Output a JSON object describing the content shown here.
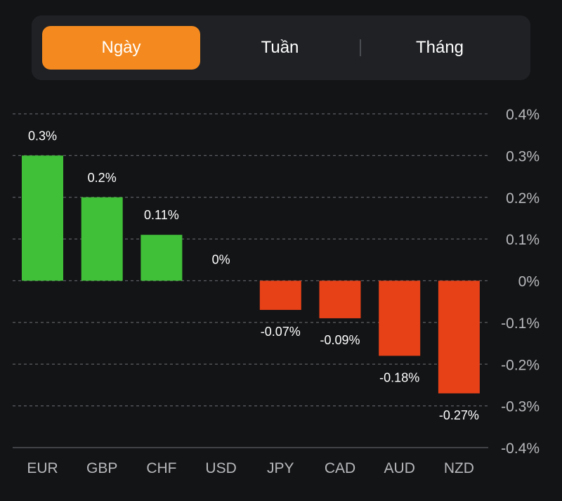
{
  "tabs": [
    {
      "label": "Ngày",
      "active": true
    },
    {
      "label": "Tuần",
      "active": false
    },
    {
      "label": "Tháng",
      "active": false
    }
  ],
  "colors": {
    "background": "#131416",
    "tab_bar": "#1f2125",
    "active_tab": "#f48a1f",
    "positive": "#40bf38",
    "negative": "#e74118",
    "text": "#ffffff",
    "axis_text": "#b8b9bc",
    "gridline": "#5c5e63"
  },
  "chart_data": {
    "type": "bar",
    "categories": [
      "EUR",
      "GBP",
      "CHF",
      "USD",
      "JPY",
      "CAD",
      "AUD",
      "NZD"
    ],
    "values": [
      0.3,
      0.2,
      0.11,
      0,
      -0.07,
      -0.09,
      -0.18,
      -0.27
    ],
    "data_labels": [
      "0.3%",
      "0.2%",
      "0.11%",
      "0%",
      "-0.07%",
      "-0.09%",
      "-0.18%",
      "-0.27%"
    ],
    "ylim": [
      -0.4,
      0.4
    ],
    "yticks": [
      0.4,
      0.3,
      0.2,
      0.1,
      0,
      -0.1,
      -0.2,
      -0.3,
      -0.4
    ],
    "ytick_labels": [
      "0.4%",
      "0.3%",
      "0.2%",
      "0.1%",
      "0%",
      "-0.1%",
      "-0.2%",
      "-0.3%",
      "-0.4%"
    ],
    "grid": true,
    "axis_position": "right"
  }
}
